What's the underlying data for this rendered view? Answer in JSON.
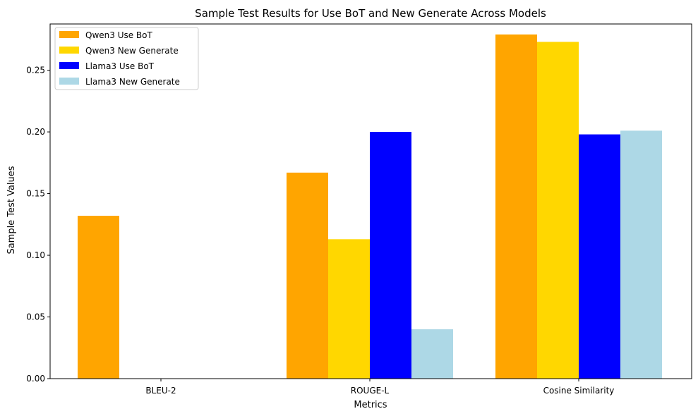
{
  "chart_data": {
    "type": "bar",
    "title": "Sample Test Results for Use BoT and New Generate Across Models",
    "xlabel": "Metrics",
    "ylabel": "Sample Test Values",
    "categories": [
      "BLEU-2",
      "ROUGE-L",
      "Cosine Similarity"
    ],
    "ylim": [
      0,
      0.2875
    ],
    "yticks": [
      "0.00",
      "0.05",
      "0.10",
      "0.15",
      "0.20",
      "0.25"
    ],
    "ytick_values": [
      0,
      0.05,
      0.1,
      0.15,
      0.2,
      0.25
    ],
    "grid": false,
    "legend_position": "top-left",
    "series": [
      {
        "name": "Qwen3 Use BoT",
        "color": "#ffa500",
        "values": [
          0.132,
          0.167,
          0.279
        ]
      },
      {
        "name": "Qwen3 New Generate",
        "color": "#ffd700",
        "values": [
          0.0,
          0.113,
          0.273
        ]
      },
      {
        "name": "Llama3 Use BoT",
        "color": "#0000ff",
        "values": [
          0.0,
          0.2,
          0.198
        ]
      },
      {
        "name": "Llama3 New Generate",
        "color": "#add8e6",
        "values": [
          0.0,
          0.04,
          0.201
        ]
      }
    ]
  }
}
